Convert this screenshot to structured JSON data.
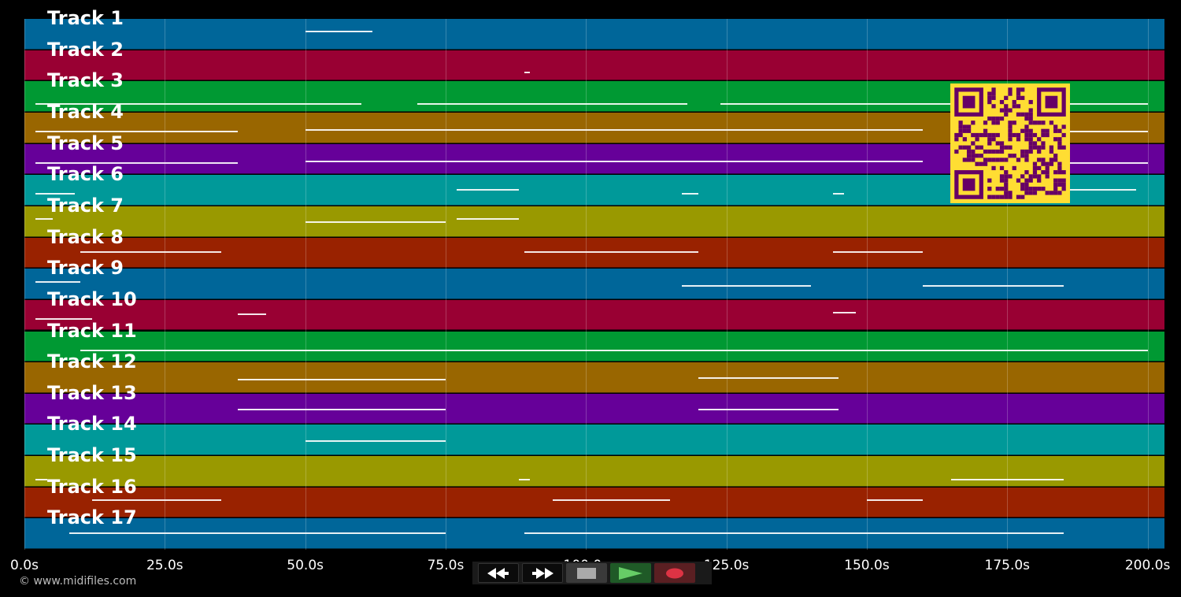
{
  "tracks": [
    {
      "label": "Track 1",
      "color": "#006699"
    },
    {
      "label": "Track 2",
      "color": "#990033"
    },
    {
      "label": "Track 3",
      "color": "#009933"
    },
    {
      "label": "Track 4",
      "color": "#996600"
    },
    {
      "label": "Track 5",
      "color": "#660099"
    },
    {
      "label": "Track 6",
      "color": "#009999"
    },
    {
      "label": "Track 7",
      "color": "#999900"
    },
    {
      "label": "Track 8",
      "color": "#992200"
    },
    {
      "label": "Track 9",
      "color": "#006699"
    },
    {
      "label": "Track 10",
      "color": "#990033"
    },
    {
      "label": "Track 11",
      "color": "#009933"
    },
    {
      "label": "Track 12",
      "color": "#996600"
    },
    {
      "label": "Track 13",
      "color": "#660099"
    },
    {
      "label": "Track 14",
      "color": "#009999"
    },
    {
      "label": "Track 15",
      "color": "#999900"
    },
    {
      "label": "Track 16",
      "color": "#992200"
    },
    {
      "label": "Track 17",
      "color": "#006699"
    }
  ],
  "time_axis": {
    "min_seconds": 0,
    "max_seconds": 203,
    "ticks": [
      {
        "seconds": 0,
        "label": "0.0s"
      },
      {
        "seconds": 25,
        "label": "25.0s"
      },
      {
        "seconds": 50,
        "label": "50.0s"
      },
      {
        "seconds": 75,
        "label": "75.0s"
      },
      {
        "seconds": 100,
        "label": "100.0s"
      },
      {
        "seconds": 125,
        "label": "125.0s"
      },
      {
        "seconds": 150,
        "label": "150.0s"
      },
      {
        "seconds": 175,
        "label": "175.0s"
      },
      {
        "seconds": 200,
        "label": "200.0s"
      }
    ]
  },
  "copyright": "© www.midifiles.com",
  "transport": {
    "rewind_icon": "rewind-icon",
    "fast_forward_icon": "fast-forward-icon",
    "stop_icon": "stop-icon",
    "play_icon": "play-icon",
    "record_icon": "record-icon"
  },
  "colors": {
    "qr_background": "#ffdd33",
    "qr_modules": "#660066"
  }
}
